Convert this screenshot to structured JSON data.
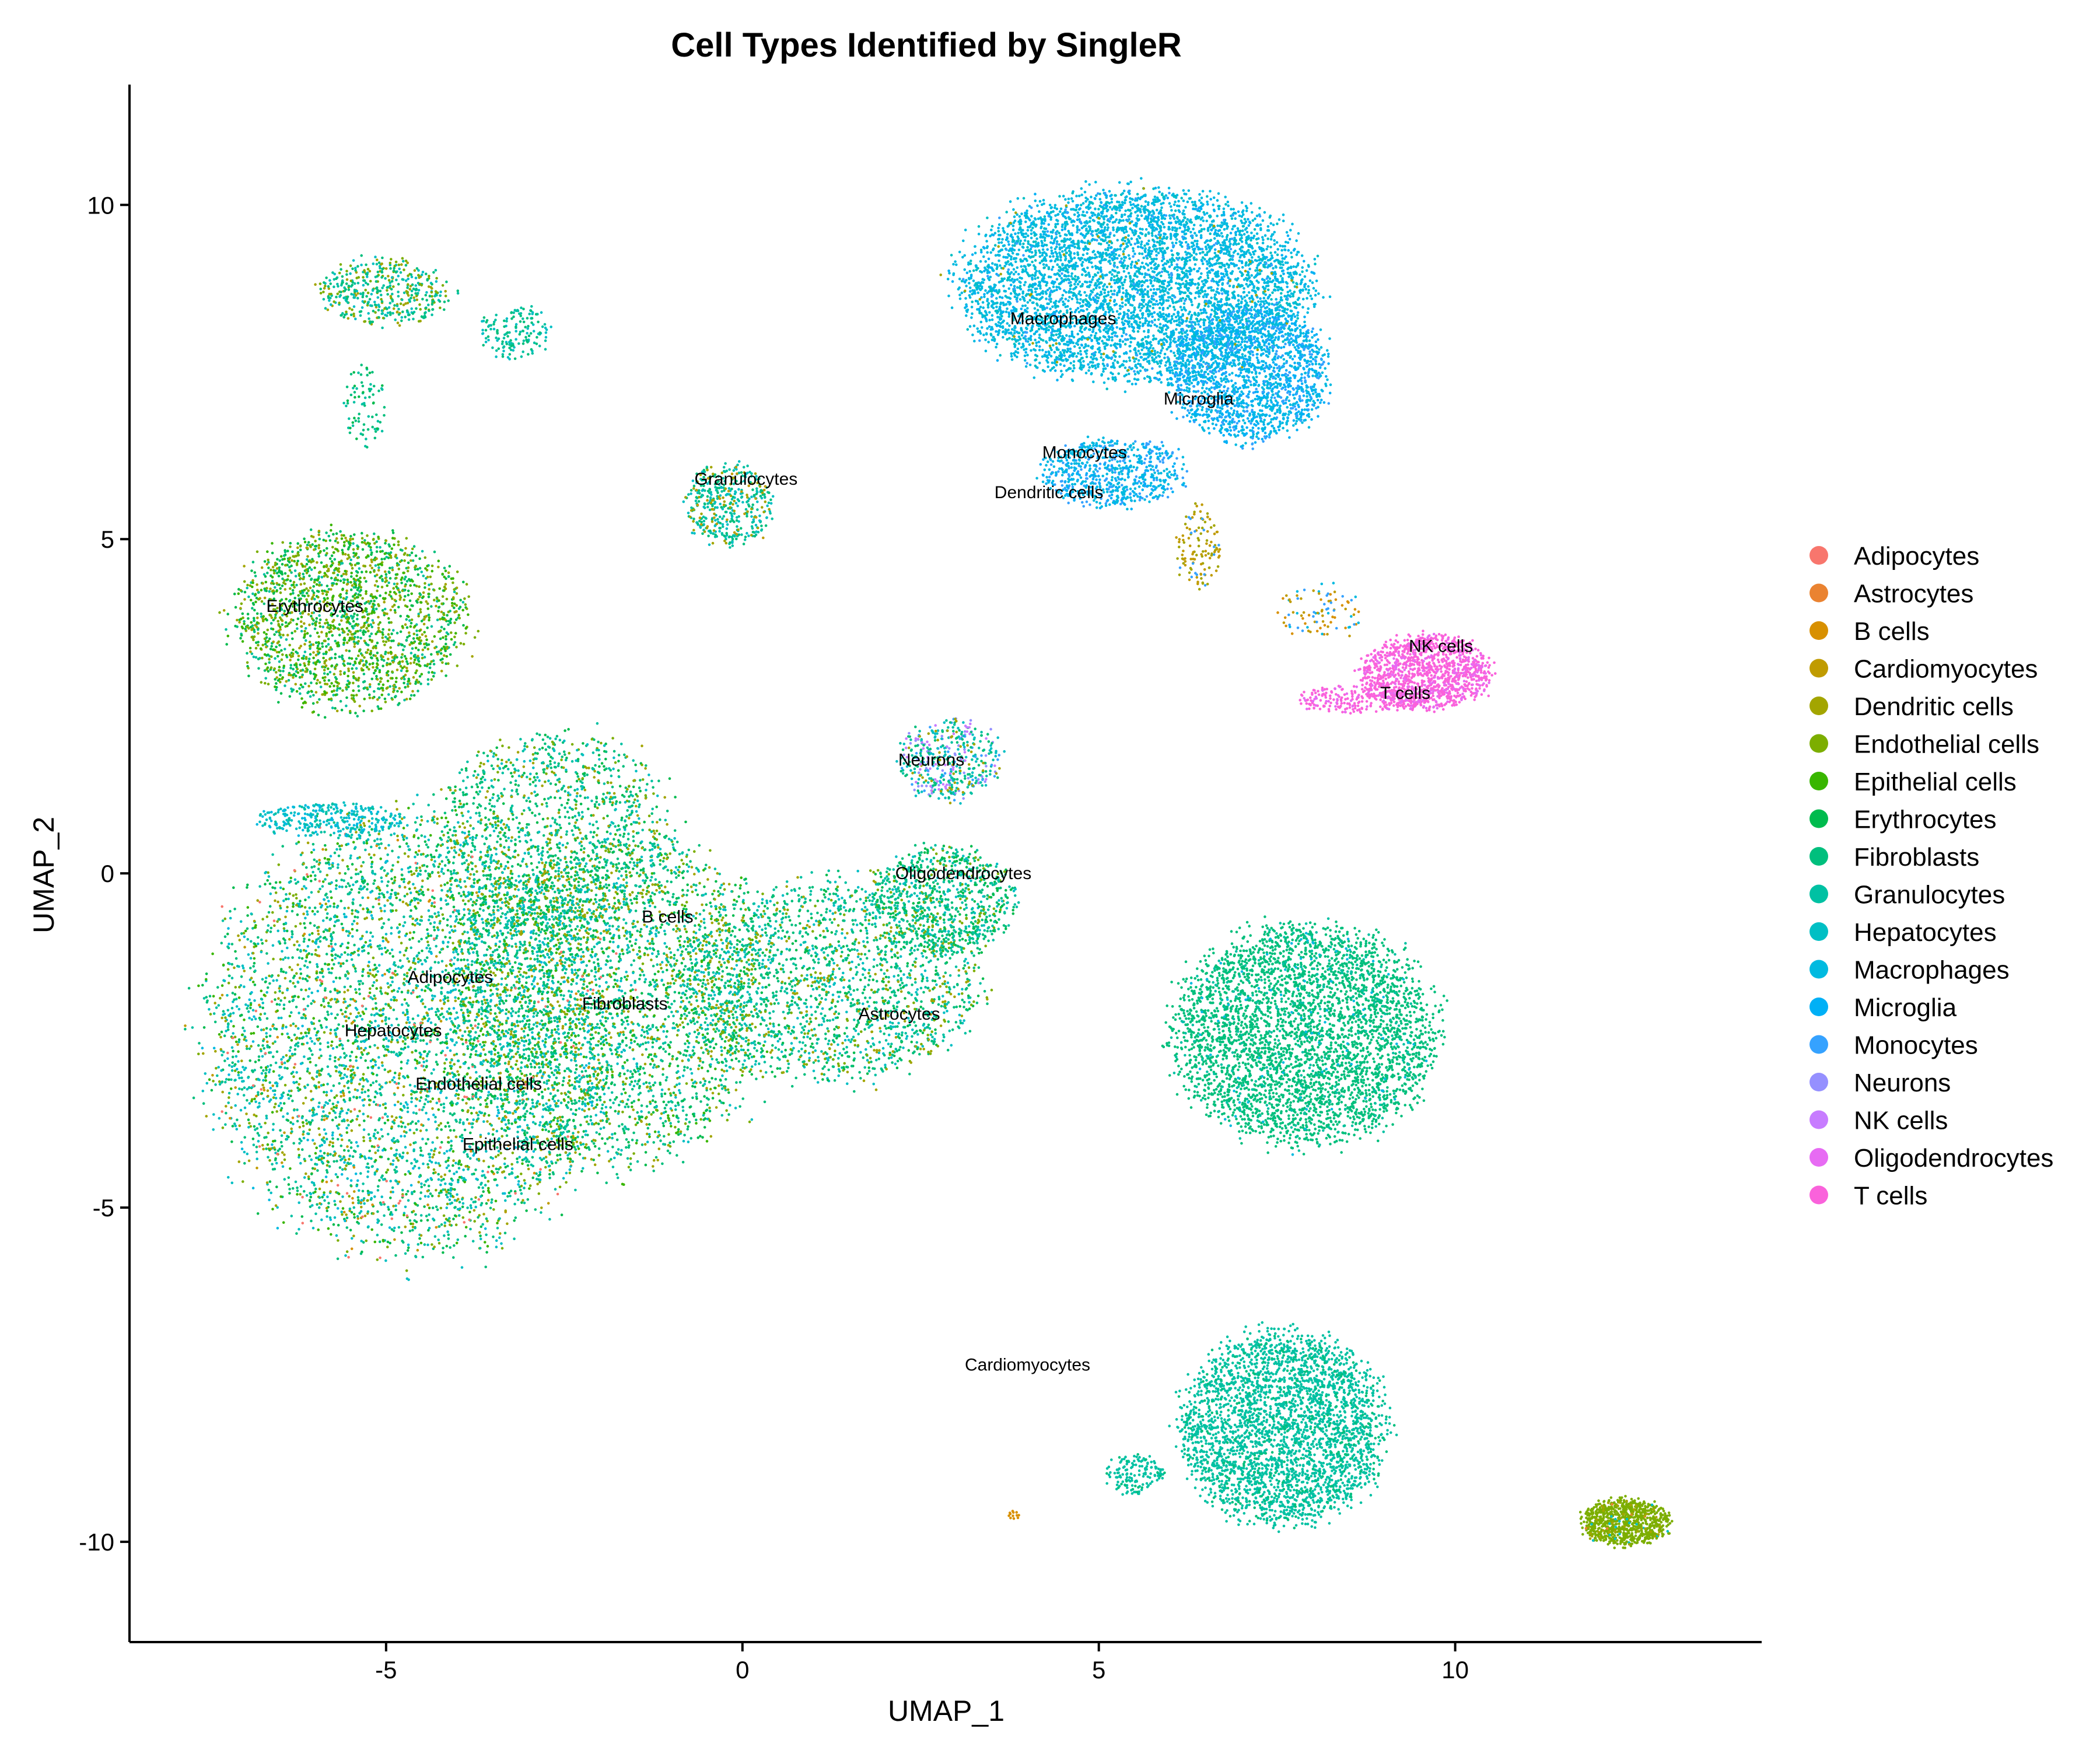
{
  "chart_data": {
    "type": "scatter",
    "title": "Cell Types Identified by SingleR",
    "xlabel": "UMAP_1",
    "ylabel": "UMAP_2",
    "xlim": [
      -8.6,
      14.3
    ],
    "ylim": [
      -11.5,
      11.8
    ],
    "xticks": [
      {
        "value": -5,
        "label": "-5"
      },
      {
        "value": 0,
        "label": "0"
      },
      {
        "value": 5,
        "label": "5"
      },
      {
        "value": 10,
        "label": "10"
      }
    ],
    "yticks": [
      {
        "value": -10,
        "label": "-10"
      },
      {
        "value": -5,
        "label": "-5"
      },
      {
        "value": 0,
        "label": "0"
      },
      {
        "value": 5,
        "label": "5"
      },
      {
        "value": 10,
        "label": "10"
      }
    ],
    "grid": false,
    "legend_position": "right",
    "series": [
      {
        "name": "Adipocytes",
        "color": "#F8766D"
      },
      {
        "name": "Astrocytes",
        "color": "#EA8331"
      },
      {
        "name": "B cells",
        "color": "#D89000"
      },
      {
        "name": "Cardiomyocytes",
        "color": "#C09B00"
      },
      {
        "name": "Dendritic cells",
        "color": "#A3A500"
      },
      {
        "name": "Endothelial cells",
        "color": "#7CAE00"
      },
      {
        "name": "Epithelial cells",
        "color": "#39B600"
      },
      {
        "name": "Erythrocytes",
        "color": "#00BB4E"
      },
      {
        "name": "Fibroblasts",
        "color": "#00BF7D"
      },
      {
        "name": "Granulocytes",
        "color": "#00C1A3"
      },
      {
        "name": "Hepatocytes",
        "color": "#00BFC4"
      },
      {
        "name": "Macrophages",
        "color": "#00BAE0"
      },
      {
        "name": "Microglia",
        "color": "#00B0F6"
      },
      {
        "name": "Monocytes",
        "color": "#35A2FF"
      },
      {
        "name": "Neurons",
        "color": "#9590FF"
      },
      {
        "name": "NK cells",
        "color": "#C77CFF"
      },
      {
        "name": "Oligodendrocytes",
        "color": "#E76BF3"
      },
      {
        "name": "T cells",
        "color": "#FA62DB"
      }
    ],
    "cluster_labels": [
      {
        "text": "Macrophages",
        "x": 4.5,
        "y": 8.3
      },
      {
        "text": "Microglia",
        "x": 6.4,
        "y": 7.1
      },
      {
        "text": "Monocytes",
        "x": 4.8,
        "y": 6.3
      },
      {
        "text": "Dendritic cells",
        "x": 4.3,
        "y": 5.7
      },
      {
        "text": "Granulocytes",
        "x": 0.05,
        "y": 5.9
      },
      {
        "text": "Erythrocytes",
        "x": -6.0,
        "y": 4.0
      },
      {
        "text": "NK cells",
        "x": 9.8,
        "y": 3.4
      },
      {
        "text": "T cells",
        "x": 9.3,
        "y": 2.7
      },
      {
        "text": "Neurons",
        "x": 2.65,
        "y": 1.7
      },
      {
        "text": "Oligodendrocytes",
        "x": 3.1,
        "y": 0.0
      },
      {
        "text": "B cells",
        "x": -1.05,
        "y": -0.65
      },
      {
        "text": "Adipocytes",
        "x": -4.1,
        "y": -1.55
      },
      {
        "text": "Fibroblasts",
        "x": -1.65,
        "y": -1.95
      },
      {
        "text": "Astrocytes",
        "x": 2.2,
        "y": -2.1
      },
      {
        "text": "Hepatocytes",
        "x": -4.9,
        "y": -2.35
      },
      {
        "text": "Endothelial cells",
        "x": -3.7,
        "y": -3.15
      },
      {
        "text": "Epithelial cells",
        "x": -3.15,
        "y": -4.05
      },
      {
        "text": "Cardiomyocytes",
        "x": 4.0,
        "y": -7.35
      }
    ],
    "clusters": [
      {
        "cx": -4.6,
        "cy": -2.4,
        "rx": 2.8,
        "ry": 3.2,
        "n": 5200,
        "mix": {
          "Hepatocytes": 3,
          "Fibroblasts": 3,
          "Erythrocytes": 2,
          "Endothelial cells": 1.5,
          "Granulocytes": 2,
          "Dendritic cells": 1.2,
          "Epithelial cells": 1,
          "Macrophages": 0.6,
          "Adipocytes": 0.3,
          "B cells": 0.2,
          "Cardiomyocytes": 0.2
        }
      },
      {
        "cx": -1.8,
        "cy": -1.9,
        "rx": 2.2,
        "ry": 2.4,
        "n": 3200,
        "mix": {
          "Fibroblasts": 3,
          "Erythrocytes": 2,
          "Granulocytes": 2,
          "Hepatocytes": 1.5,
          "Dendritic cells": 1.2,
          "Endothelial cells": 1,
          "Epithelial cells": 1
        }
      },
      {
        "cx": 1.2,
        "cy": -1.6,
        "rx": 2.1,
        "ry": 1.5,
        "n": 2000,
        "mix": {
          "Fibroblasts": 3,
          "Granulocytes": 2,
          "Erythrocytes": 1.5,
          "Hepatocytes": 1.5,
          "Endothelial cells": 1,
          "Dendritic cells": 1
        }
      },
      {
        "cx": 2.8,
        "cy": -0.4,
        "rx": 1.0,
        "ry": 0.8,
        "n": 800,
        "mix": {
          "Fibroblasts": 3,
          "Granulocytes": 2,
          "Erythrocytes": 1.5,
          "Hepatocytes": 1,
          "Endothelial cells": 1
        }
      },
      {
        "cx": -2.6,
        "cy": 0.6,
        "rx": 1.6,
        "ry": 1.5,
        "n": 1300,
        "mix": {
          "Fibroblasts": 3,
          "Erythrocytes": 2,
          "Granulocytes": 2,
          "Endothelial cells": 1.2,
          "Hepatocytes": 1,
          "Dendritic cells": 1
        }
      },
      {
        "cx": -5.8,
        "cy": 0.8,
        "rx": 1.0,
        "ry": 0.25,
        "n": 300,
        "mix": {
          "Hepatocytes": 3,
          "Macrophages": 2,
          "Granulocytes": 1
        }
      },
      {
        "cx": -5.5,
        "cy": 3.8,
        "rx": 1.6,
        "ry": 1.3,
        "n": 2000,
        "mix": {
          "Erythrocytes": 3,
          "Endothelial cells": 2.5,
          "Epithelial cells": 2,
          "Fibroblasts": 1.5,
          "Dendritic cells": 1.5,
          "Granulocytes": 1
        }
      },
      {
        "cx": -5.0,
        "cy": 8.7,
        "rx": 0.9,
        "ry": 0.5,
        "n": 450,
        "mix": {
          "Fibroblasts": 3,
          "Granulocytes": 2,
          "Dendritic cells": 1.5,
          "Endothelial cells": 1.5,
          "Hepatocytes": 1.5
        }
      },
      {
        "cx": -3.2,
        "cy": 8.1,
        "rx": 0.5,
        "ry": 0.4,
        "n": 150,
        "mix": {
          "Fibroblasts": 3,
          "Granulocytes": 2,
          "Hepatocytes": 2
        }
      },
      {
        "cx": -5.3,
        "cy": 7.0,
        "rx": 0.3,
        "ry": 0.6,
        "n": 80,
        "mix": {
          "Fibroblasts": 3,
          "Granulocytes": 2,
          "Erythrocytes": 1
        }
      },
      {
        "cx": -0.2,
        "cy": 5.5,
        "rx": 0.6,
        "ry": 0.6,
        "n": 450,
        "mix": {
          "Granulocytes": 3,
          "Hepatocytes": 2,
          "Fibroblasts": 1.5,
          "Dendritic cells": 1,
          "Cardiomyocytes": 0.5
        }
      },
      {
        "cx": 2.9,
        "cy": 1.7,
        "rx": 0.7,
        "ry": 0.6,
        "n": 450,
        "mix": {
          "Granulocytes": 2,
          "Hepatocytes": 2,
          "Fibroblasts": 2,
          "Neurons": 1.2,
          "NK cells": 1,
          "Monocytes": 1,
          "Dendritic cells": 1
        }
      },
      {
        "cx": 5.5,
        "cy": 8.8,
        "rx": 2.4,
        "ry": 1.4,
        "n": 5200,
        "mix": {
          "Macrophages": 6,
          "Hepatocytes": 1,
          "Microglia": 0.8,
          "Monocytes": 0.2,
          "Dendritic cells": 0.1
        }
      },
      {
        "cx": 7.1,
        "cy": 7.5,
        "rx": 1.1,
        "ry": 1.0,
        "n": 1800,
        "mix": {
          "Microglia": 4,
          "Macrophages": 3,
          "Monocytes": 1.2
        }
      },
      {
        "cx": 5.2,
        "cy": 6.0,
        "rx": 1.0,
        "ry": 0.5,
        "n": 700,
        "mix": {
          "Macrophages": 3,
          "Monocytes": 2,
          "Microglia": 1.5
        }
      },
      {
        "cx": 6.4,
        "cy": 4.9,
        "rx": 0.3,
        "ry": 0.6,
        "n": 120,
        "mix": {
          "Cardiomyocytes": 3,
          "Dendritic cells": 2,
          "Monocytes": 1
        }
      },
      {
        "cx": 9.6,
        "cy": 3.0,
        "rx": 0.9,
        "ry": 0.55,
        "n": 1300,
        "mix": {
          "T cells": 6,
          "Oligodendrocytes": 1
        }
      },
      {
        "cx": 8.6,
        "cy": 2.6,
        "rx": 0.8,
        "ry": 0.2,
        "n": 220,
        "mix": {
          "T cells": 4,
          "Oligodendrocytes": 1
        }
      },
      {
        "cx": 8.1,
        "cy": 3.9,
        "rx": 0.6,
        "ry": 0.4,
        "n": 90,
        "mix": {
          "B cells": 2,
          "Cardiomyocytes": 2,
          "Monocytes": 1,
          "Macrophages": 1
        }
      },
      {
        "cx": 7.9,
        "cy": -2.4,
        "rx": 1.8,
        "ry": 1.6,
        "n": 4000,
        "mix": {
          "Fibroblasts": 8,
          "Granulocytes": 0.5,
          "Macrophages": 0.2
        }
      },
      {
        "cx": 7.6,
        "cy": -8.3,
        "rx": 1.4,
        "ry": 1.4,
        "n": 3200,
        "mix": {
          "Granulocytes": 8,
          "Fibroblasts": 1
        }
      },
      {
        "cx": 5.5,
        "cy": -9.0,
        "rx": 0.4,
        "ry": 0.3,
        "n": 150,
        "mix": {
          "Granulocytes": 6,
          "Fibroblasts": 1
        }
      },
      {
        "cx": 12.4,
        "cy": -9.7,
        "rx": 0.6,
        "ry": 0.35,
        "n": 900,
        "mix": {
          "Endothelial cells": 10,
          "Hepatocytes": 0.3,
          "Astrocytes": 0.2,
          "Dendritic cells": 0.5
        }
      },
      {
        "cx": 3.8,
        "cy": -9.6,
        "rx": 0.08,
        "ry": 0.06,
        "n": 12,
        "mix": {
          "B cells": 1
        }
      }
    ]
  }
}
